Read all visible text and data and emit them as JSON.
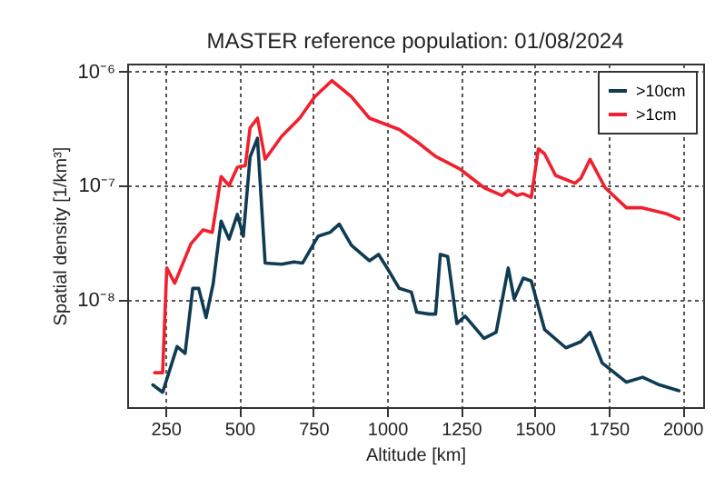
{
  "chart_data": {
    "type": "line",
    "title": "MASTER reference population: 01/08/2024",
    "xlabel": "Altitude [km]",
    "ylabel": "Spatial density [1/km³]",
    "xlim": [
      120,
      2070
    ],
    "xticks": [
      250,
      500,
      750,
      1000,
      1250,
      1500,
      1750,
      2000
    ],
    "ylim": [
      1.15e-09,
      1.17e-06
    ],
    "yticks": [
      {
        "value": 1e-08,
        "label": "10⁻⁸"
      },
      {
        "value": 1e-07,
        "label": "10⁻⁷"
      },
      {
        "value": 1e-06,
        "label": "10⁻⁶"
      }
    ],
    "log": "y",
    "grid": true,
    "legend": "top right",
    "line_style": "solid",
    "marker": "none",
    "series": [
      {
        "name": ">10cm",
        "color": "#0f3b53",
        "x": [
          207,
          240,
          289,
          316,
          342,
          362,
          387,
          411,
          438,
          465,
          493,
          513,
          536,
          561,
          587,
          643,
          684,
          714,
          766,
          807,
          838,
          879,
          940,
          971,
          1002,
          1041,
          1082,
          1100,
          1143,
          1164,
          1180,
          1205,
          1236,
          1264,
          1328,
          1369,
          1410,
          1430,
          1461,
          1488,
          1533,
          1605,
          1656,
          1687,
          1728,
          1810,
          1865,
          1922,
          1988
        ],
        "values": [
          1.8e-09,
          1.55e-09,
          3.9e-09,
          3.4e-09,
          1.26e-08,
          1.26e-08,
          7e-09,
          1.38e-08,
          4.9e-08,
          3.4e-08,
          5.6e-08,
          3.6e-08,
          1.78e-07,
          2.6e-07,
          2.1e-08,
          2.05e-08,
          2.15e-08,
          2.1e-08,
          3.6e-08,
          3.9e-08,
          4.6e-08,
          3e-08,
          2.2e-08,
          2.5e-08,
          1.86e-08,
          1.26e-08,
          1.17e-08,
          7.8e-09,
          7.5e-09,
          7.5e-09,
          2.5e-08,
          2.4e-08,
          6.2e-09,
          7.2e-09,
          4.6e-09,
          5.2e-09,
          1.9e-08,
          1.02e-08,
          1.55e-08,
          1.46e-08,
          5.5e-09,
          3.8e-09,
          4.3e-09,
          5.2e-09,
          2.8e-09,
          1.9e-09,
          2.1e-09,
          1.8e-09,
          1.6e-09
        ]
      },
      {
        "name": ">1cm",
        "color": "#f0202e",
        "x": [
          213,
          240,
          254,
          281,
          336,
          377,
          408,
          438,
          465,
          493,
          520,
          536,
          561,
          587,
          643,
          704,
          755,
          813,
          879,
          940,
          1041,
          1103,
          1164,
          1246,
          1328,
          1389,
          1410,
          1440,
          1459,
          1488,
          1512,
          1533,
          1570,
          1636,
          1656,
          1687,
          1738,
          1810,
          1861,
          1943,
          1988
        ],
        "values": [
          2.3e-09,
          2.3e-09,
          1.9e-08,
          1.4e-08,
          3.1e-08,
          4.1e-08,
          3.9e-08,
          1.2e-07,
          1e-07,
          1.45e-07,
          1.5e-07,
          3.2e-07,
          3.9e-07,
          1.7e-07,
          2.7e-07,
          3.9e-07,
          6e-07,
          8.3e-07,
          6e-07,
          3.9e-07,
          3.1e-07,
          2.4e-07,
          1.8e-07,
          1.4e-07,
          9.6e-08,
          8.2e-08,
          9.1e-08,
          8.2e-08,
          8.5e-08,
          7.9e-08,
          2.1e-07,
          1.9e-07,
          1.23e-07,
          1.05e-07,
          1.16e-07,
          1.7e-07,
          9.6e-08,
          6.4e-08,
          6.4e-08,
          5.7e-08,
          5.1e-08
        ]
      }
    ]
  }
}
